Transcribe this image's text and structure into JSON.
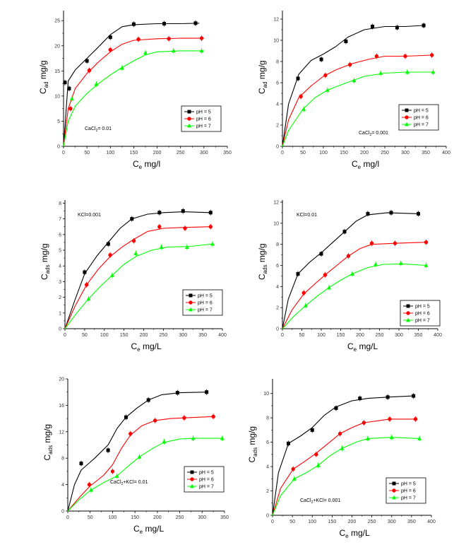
{
  "colors": {
    "series": [
      "#000000",
      "#ff0000",
      "#00ff00"
    ],
    "axis": "#000000",
    "text": "#000000"
  },
  "chart_data": [
    {
      "type": "scatter",
      "ylabel_main": "C",
      "ylabel_sub": "ad",
      "ylabel_rest": " mg/g",
      "xlabel_main": "C",
      "xlabel_sub": "e",
      "xlabel_rest": " mg/l",
      "xlim": [
        0,
        350
      ],
      "ylim": [
        0,
        27
      ],
      "xticks": [
        "0",
        "50",
        "100",
        "150",
        "200",
        "250",
        "300",
        "350"
      ],
      "yticks": [
        "0",
        "5",
        "10",
        "15",
        "20",
        "25"
      ],
      "annotation": {
        "main": "CaCl",
        "sub": "2",
        "rest": "= 0.01"
      },
      "legend": [
        "pH = 5",
        "pH = 6",
        "pH = 7"
      ],
      "series": [
        {
          "name": "pH = 5",
          "x": [
            3,
            12,
            50,
            100,
            150,
            215,
            282
          ],
          "y": [
            12.7,
            11.5,
            17,
            21.7,
            24.3,
            24.4,
            24.5
          ],
          "fit_x": [
            0,
            10,
            25,
            50,
            75,
            100,
            125,
            150,
            200,
            250,
            290
          ],
          "fit_y": [
            0,
            13,
            15.2,
            17.5,
            19.8,
            22.2,
            23.8,
            24.2,
            24.4,
            24.4,
            24.5
          ]
        },
        {
          "name": "pH = 6",
          "x": [
            15,
            55,
            100,
            160,
            225,
            295
          ],
          "y": [
            7.5,
            15.1,
            19.2,
            21.3,
            21.4,
            21.5
          ],
          "fit_x": [
            0,
            10,
            25,
            50,
            75,
            100,
            125,
            150,
            200,
            250,
            300
          ],
          "fit_y": [
            0,
            7.5,
            11.5,
            14.5,
            16.8,
            18.8,
            20.3,
            21.1,
            21.4,
            21.5,
            21.5
          ]
        },
        {
          "name": "pH = 7",
          "x": [
            18,
            70,
            125,
            175,
            235,
            295
          ],
          "y": [
            9.5,
            12.4,
            15.6,
            18.6,
            19,
            19
          ],
          "fit_x": [
            0,
            10,
            25,
            50,
            75,
            100,
            125,
            150,
            175,
            200,
            250,
            300
          ],
          "fit_y": [
            0,
            5,
            8,
            10.5,
            12.5,
            14.2,
            15.7,
            17,
            18.2,
            18.8,
            19,
            19
          ]
        }
      ]
    },
    {
      "type": "scatter",
      "ylabel_main": "C",
      "ylabel_sub": "ad",
      "ylabel_rest": " mg/g",
      "xlabel_main": "C",
      "xlabel_sub": "e",
      "xlabel_rest": " mg/l",
      "xlim": [
        0,
        400
      ],
      "ylim": [
        0,
        12.8
      ],
      "xticks": [
        "0",
        "50",
        "100",
        "150",
        "200",
        "250",
        "300",
        "350",
        "400"
      ],
      "yticks": [
        "0",
        "2",
        "4",
        "6",
        "8",
        "10",
        "12"
      ],
      "annotation": {
        "main": "CaCl",
        "sub": "2",
        "rest": "= 0.001"
      },
      "legend": [
        "pH = 5",
        "pH = 6",
        "pH = 7"
      ],
      "series": [
        {
          "name": "pH = 5",
          "x": [
            38,
            95,
            155,
            220,
            280,
            345
          ],
          "y": [
            6.4,
            8.2,
            9.9,
            11.3,
            11.2,
            11.4
          ],
          "fit_x": [
            0,
            15,
            40,
            70,
            100,
            130,
            160,
            200,
            250,
            300,
            345
          ],
          "fit_y": [
            0,
            4,
            6.8,
            8.1,
            8.7,
            9.4,
            10.3,
            11,
            11.3,
            11.3,
            11.4
          ]
        },
        {
          "name": "pH = 6",
          "x": [
            45,
            105,
            165,
            230,
            300,
            365
          ],
          "y": [
            4.7,
            6.7,
            7.7,
            8.5,
            8.5,
            8.6
          ],
          "fit_x": [
            0,
            15,
            40,
            70,
            100,
            130,
            170,
            210,
            250,
            300,
            365
          ],
          "fit_y": [
            0,
            2.5,
            4.6,
            5.7,
            6.6,
            7.2,
            7.8,
            8.2,
            8.5,
            8.5,
            8.6
          ]
        },
        {
          "name": "pH = 7",
          "x": [
            52,
            110,
            175,
            240,
            305,
            368
          ],
          "y": [
            3.5,
            5.3,
            6.2,
            6.9,
            7,
            7
          ],
          "fit_x": [
            0,
            15,
            50,
            80,
            110,
            150,
            200,
            250,
            300,
            368
          ],
          "fit_y": [
            0,
            1.5,
            3.5,
            4.6,
            5.3,
            5.9,
            6.6,
            6.9,
            7,
            7
          ]
        }
      ]
    },
    {
      "type": "scatter",
      "ylabel_main": "C",
      "ylabel_sub": "ads",
      "ylabel_rest": " mg/g",
      "xlabel_main": "C",
      "xlabel_sub": "e",
      "xlabel_rest": " mg/L",
      "xlim": [
        0,
        400
      ],
      "ylim": [
        0,
        8.2
      ],
      "xticks": [
        "0",
        "50",
        "100",
        "150",
        "200",
        "250",
        "300",
        "350",
        "400"
      ],
      "yticks": [
        "0",
        "1",
        "2",
        "3",
        "4",
        "5",
        "6",
        "7",
        "8"
      ],
      "annotation": {
        "main": "KCl=0.001",
        "sub": "",
        "rest": ""
      },
      "legend": [
        "pH = 5",
        "pH = 6",
        "pH = 7"
      ],
      "series": [
        {
          "name": "pH = 5",
          "x": [
            50,
            110,
            170,
            240,
            300,
            370
          ],
          "y": [
            3.6,
            5.4,
            7,
            7.4,
            7.5,
            7.4
          ],
          "fit_x": [
            0,
            25,
            50,
            80,
            110,
            140,
            170,
            210,
            250,
            300,
            370
          ],
          "fit_y": [
            0,
            1.8,
            3.5,
            4.6,
            5.5,
            6.4,
            7,
            7.3,
            7.4,
            7.45,
            7.4
          ]
        },
        {
          "name": "pH = 6",
          "x": [
            55,
            115,
            175,
            240,
            305,
            370
          ],
          "y": [
            2.8,
            4.7,
            5.6,
            6.5,
            6.4,
            6.5
          ],
          "fit_x": [
            0,
            25,
            55,
            85,
            115,
            145,
            175,
            210,
            250,
            300,
            370
          ],
          "fit_y": [
            0,
            1.4,
            2.8,
            3.8,
            4.6,
            5.2,
            5.7,
            6.2,
            6.4,
            6.45,
            6.5
          ]
        },
        {
          "name": "pH = 7",
          "x": [
            60,
            120,
            180,
            245,
            310,
            375
          ],
          "y": [
            1.9,
            3.4,
            4.8,
            5.2,
            5.2,
            5.4
          ],
          "fit_x": [
            0,
            30,
            60,
            90,
            120,
            150,
            180,
            220,
            260,
            320,
            375
          ],
          "fit_y": [
            0,
            1,
            1.9,
            2.7,
            3.4,
            4.1,
            4.6,
            5,
            5.2,
            5.25,
            5.4
          ]
        }
      ]
    },
    {
      "type": "scatter",
      "ylabel_main": "C",
      "ylabel_sub": "ads",
      "ylabel_rest": " mg/g",
      "xlabel_main": "C",
      "xlabel_sub": "e",
      "xlabel_rest": " mg/L",
      "xlim": [
        0,
        400
      ],
      "ylim": [
        0,
        12.2
      ],
      "xticks": [
        "0",
        "50",
        "100",
        "150",
        "200",
        "250",
        "300",
        "350",
        "400"
      ],
      "yticks": [
        "0",
        "2",
        "4",
        "6",
        "8",
        "10",
        "12"
      ],
      "annotation": {
        "main": "KCl=0.01",
        "sub": "",
        "rest": ""
      },
      "legend": [
        "pH = 5",
        "pH = 6",
        "pH = 7"
      ],
      "series": [
        {
          "name": "pH = 5",
          "x": [
            40,
            100,
            160,
            220,
            280,
            350
          ],
          "y": [
            5.2,
            7.1,
            9.2,
            10.9,
            11,
            10.9
          ],
          "fit_x": [
            0,
            15,
            40,
            70,
            100,
            130,
            160,
            190,
            220,
            270,
            350
          ],
          "fit_y": [
            0,
            2.8,
            5.2,
            6.3,
            7.2,
            8.2,
            9.2,
            10.2,
            10.8,
            11,
            10.9
          ]
        },
        {
          "name": "pH = 6",
          "x": [
            55,
            110,
            170,
            230,
            290,
            370
          ],
          "y": [
            3.4,
            5.1,
            6.9,
            8.1,
            8.1,
            8.2
          ],
          "fit_x": [
            0,
            25,
            55,
            85,
            110,
            140,
            170,
            200,
            230,
            290,
            370
          ],
          "fit_y": [
            0,
            1.8,
            3.3,
            4.3,
            5.1,
            6,
            6.9,
            7.6,
            8,
            8.1,
            8.2
          ]
        },
        {
          "name": "pH = 7",
          "x": [
            60,
            120,
            180,
            240,
            305,
            370
          ],
          "y": [
            2.2,
            3.9,
            5.2,
            6.1,
            6.2,
            6
          ],
          "fit_x": [
            0,
            30,
            60,
            90,
            120,
            150,
            180,
            220,
            260,
            310,
            370
          ],
          "fit_y": [
            0,
            1.2,
            2.2,
            3.1,
            3.9,
            4.6,
            5.2,
            5.8,
            6.1,
            6.15,
            6
          ]
        }
      ]
    },
    {
      "type": "scatter",
      "ylabel_main": "C",
      "ylabel_sub": "ads",
      "ylabel_rest": " mg/g",
      "xlabel_main": "C",
      "xlabel_sub": "e",
      "xlabel_rest": " mg/L",
      "xlim": [
        0,
        350
      ],
      "ylim": [
        0,
        20
      ],
      "xticks": [
        "0",
        "50",
        "100",
        "150",
        "200",
        "250",
        "300",
        "350"
      ],
      "yticks": [
        "0",
        "4",
        "8",
        "12",
        "16",
        "20"
      ],
      "annotation": {
        "main": "CaCl",
        "sub": "2",
        "rest": "+KCl= 0.01"
      },
      "legend": [
        "pH = 5",
        "pH = 6",
        "pH = 7"
      ],
      "series": [
        {
          "name": "pH = 5",
          "x": [
            30,
            90,
            130,
            180,
            245,
            310
          ],
          "y": [
            7.2,
            9.2,
            14.2,
            16.8,
            17.9,
            18
          ],
          "fit_x": [
            0,
            15,
            30,
            60,
            90,
            110,
            130,
            155,
            180,
            210,
            250,
            310
          ],
          "fit_y": [
            0,
            4,
            6.2,
            8,
            10,
            12.5,
            14.2,
            15.6,
            16.8,
            17.6,
            17.9,
            18
          ]
        },
        {
          "name": "pH = 6",
          "x": [
            48,
            100,
            140,
            195,
            260,
            325
          ],
          "y": [
            4,
            6,
            11.7,
            13.7,
            14.1,
            14.3
          ],
          "fit_x": [
            0,
            25,
            50,
            80,
            100,
            120,
            140,
            165,
            195,
            230,
            260,
            325
          ],
          "fit_y": [
            0,
            2,
            3.8,
            5.4,
            7,
            9.5,
            11.5,
            12.9,
            13.7,
            14,
            14.1,
            14.3
          ]
        },
        {
          "name": "pH = 7",
          "x": [
            52,
            110,
            160,
            215,
            280,
            345
          ],
          "y": [
            3.2,
            5.3,
            8.2,
            10.5,
            11,
            11
          ],
          "fit_x": [
            0,
            25,
            52,
            80,
            110,
            135,
            160,
            190,
            215,
            250,
            280,
            345
          ],
          "fit_y": [
            0,
            1.7,
            3.2,
            4.3,
            5.3,
            6.8,
            8.2,
            9.5,
            10.4,
            10.9,
            11,
            11
          ]
        }
      ]
    },
    {
      "type": "scatter",
      "ylabel_main": "C",
      "ylabel_sub": "ads",
      "ylabel_rest": " mg/g",
      "xlabel_main": "C",
      "xlabel_sub": "e",
      "xlabel_rest": " mg/L",
      "xlim": [
        0,
        400
      ],
      "ylim": [
        0,
        11.2
      ],
      "xticks": [
        "0",
        "50",
        "100",
        "150",
        "200",
        "250",
        "300",
        "350",
        "400"
      ],
      "yticks": [
        "0",
        "2",
        "4",
        "6",
        "8",
        "10"
      ],
      "annotation": {
        "main": "CaCl",
        "sub": "2",
        "rest": "+KCl= 0.001"
      },
      "legend": [
        "pH = 5",
        "pH = 6",
        "pH = 7"
      ],
      "series": [
        {
          "name": "pH = 5",
          "x": [
            40,
            100,
            160,
            220,
            290,
            355
          ],
          "y": [
            5.9,
            7,
            8.8,
            9.6,
            9.7,
            9.8
          ],
          "fit_x": [
            0,
            15,
            40,
            70,
            100,
            130,
            160,
            200,
            240,
            290,
            355
          ],
          "fit_y": [
            0,
            3.5,
            5.9,
            6.5,
            7.2,
            8.2,
            8.9,
            9.4,
            9.6,
            9.7,
            9.8
          ]
        },
        {
          "name": "pH = 6",
          "x": [
            52,
            110,
            170,
            230,
            295,
            360
          ],
          "y": [
            3.8,
            5,
            6.7,
            7.6,
            7.9,
            7.9
          ],
          "fit_x": [
            0,
            20,
            52,
            80,
            110,
            140,
            170,
            200,
            230,
            295,
            360
          ],
          "fit_y": [
            0,
            2.2,
            3.8,
            4.4,
            5.1,
            5.9,
            6.7,
            7.2,
            7.6,
            7.9,
            7.9
          ]
        },
        {
          "name": "pH = 7",
          "x": [
            55,
            115,
            175,
            240,
            300,
            370
          ],
          "y": [
            3,
            4.1,
            5.5,
            6.3,
            6.4,
            6.3
          ],
          "fit_x": [
            0,
            20,
            55,
            85,
            115,
            145,
            175,
            210,
            240,
            300,
            370
          ],
          "fit_y": [
            0,
            1.6,
            3,
            3.5,
            4.1,
            4.9,
            5.5,
            6,
            6.3,
            6.4,
            6.3
          ]
        }
      ]
    }
  ]
}
